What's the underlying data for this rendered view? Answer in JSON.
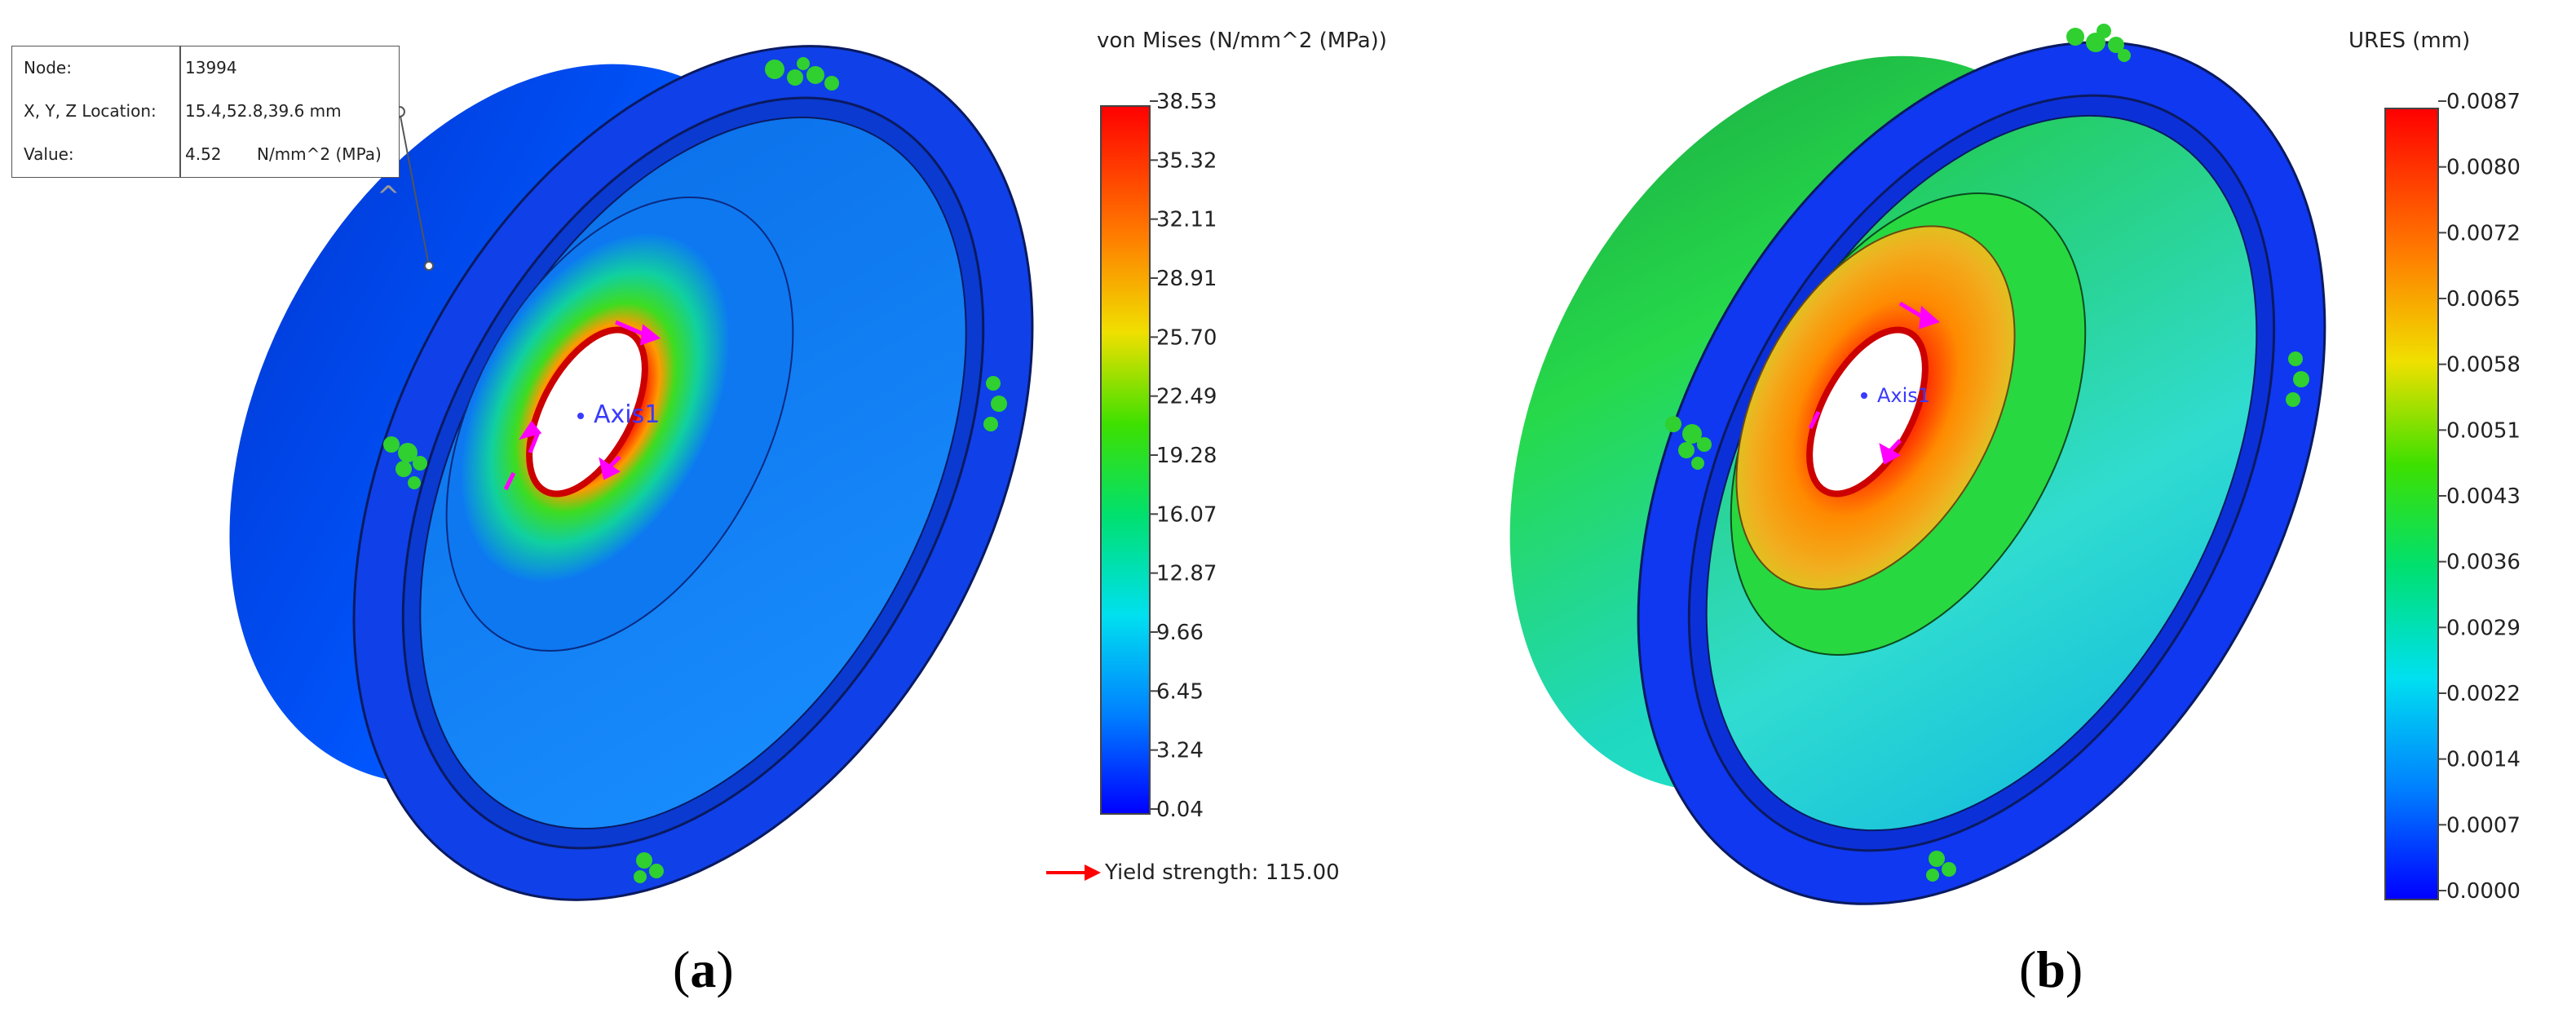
{
  "panel_a": {
    "caption": "(a)",
    "legend_title": "von Mises (N/mm^2 (MPa))",
    "ticks": [
      "38.53",
      "35.32",
      "32.11",
      "28.91",
      "25.70",
      "22.49",
      "19.28",
      "16.07",
      "12.87",
      "9.66",
      "6.45",
      "3.24",
      "0.04"
    ],
    "yield_label": "Yield strength: 115.00",
    "axis_label": "Axis1",
    "probe": {
      "node_key": "Node:",
      "node_value": "13994",
      "location_key": "X, Y, Z Location:",
      "location_value": "15.4,52.8,39.6 mm",
      "value_key": "Value:",
      "value_value": "4.52",
      "value_unit": "N/mm^2 (MPa)"
    }
  },
  "panel_b": {
    "caption": "(b)",
    "legend_title": "URES (mm)",
    "ticks": [
      "0.0087",
      "0.0080",
      "0.0072",
      "0.0065",
      "0.0058",
      "0.0051",
      "0.0043",
      "0.0036",
      "0.0029",
      "0.0022",
      "0.0014",
      "0.0007",
      "0.0000"
    ],
    "axis_label": "Axis1"
  },
  "colors": {
    "scale_top": "#ff0000",
    "scale_upper": "#ffa000",
    "scale_mid": "#00e000",
    "scale_lower": "#00d0ff",
    "scale_bottom": "#0000ff",
    "fixture": "#2fd02f",
    "load_arrow": "#ff00ff",
    "yield_arrow": "#ff0000"
  }
}
